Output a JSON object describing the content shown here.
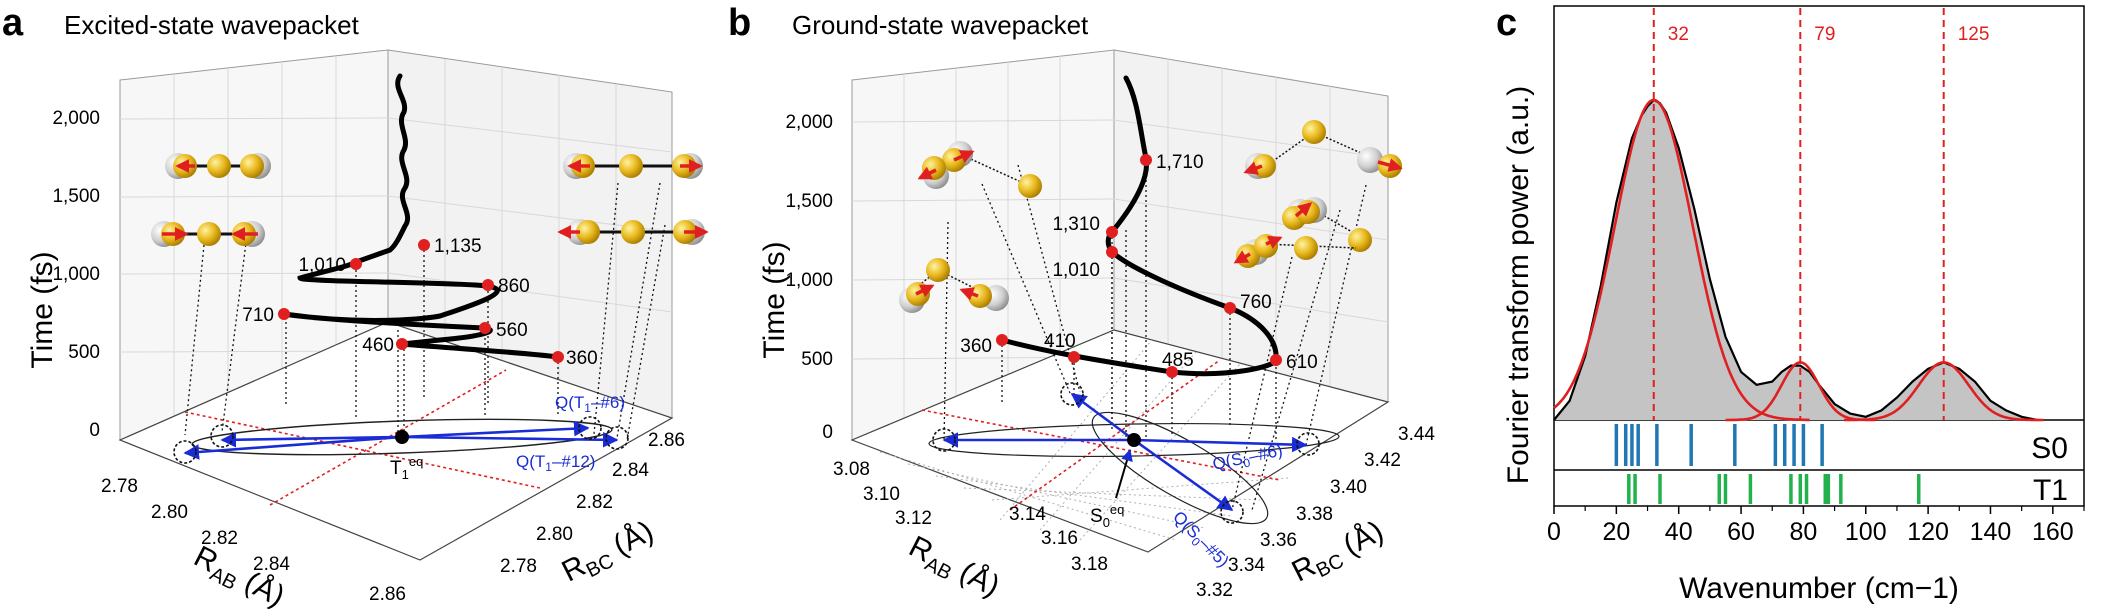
{
  "panels": {
    "a": {
      "letter": "a",
      "title": "Excited-state wavepacket"
    },
    "b": {
      "letter": "b",
      "title": "Ground-state wavepacket"
    },
    "c": {
      "letter": "c"
    }
  },
  "colors": {
    "accent_red": "#e02020",
    "blue": "#1a2cd6",
    "fill_grey": "#c4c4c4",
    "s0_blue": "#1f77b4",
    "t1_green": "#22b14c"
  },
  "chart_data": [
    {
      "id": "a",
      "type": "line",
      "title": "Excited-state wavepacket",
      "zlabel": "Time (fs)",
      "xlabel": "R_AB (Å)",
      "ylabel": "R_BC (Å)",
      "zticks": [
        "0",
        "500",
        "1,000",
        "1,500",
        "2,000"
      ],
      "zlim": [
        -200,
        2300
      ],
      "xticks": [
        "2.78",
        "2.80",
        "2.82",
        "2.84",
        "2.86"
      ],
      "yticks": [
        "2.78",
        "2.80",
        "2.82",
        "2.84",
        "2.86"
      ],
      "marked_times_fs": [
        {
          "t": 360,
          "label": "360"
        },
        {
          "t": 460,
          "label": "460"
        },
        {
          "t": 560,
          "label": "560"
        },
        {
          "t": 710,
          "label": "710"
        },
        {
          "t": 860,
          "label": "860"
        },
        {
          "t": 1010,
          "label": "1,010"
        },
        {
          "t": 1135,
          "label": "1,135"
        }
      ],
      "equilibrium_label": "T1eq",
      "vectors": [
        {
          "label": "Q(T1-#6)",
          "sub": "T",
          "sub2": "1",
          "suffix": "–#6)"
        },
        {
          "label": "Q(T1-#12)",
          "sub": "T",
          "sub2": "1",
          "suffix": "–#12)"
        }
      ]
    },
    {
      "id": "b",
      "type": "line",
      "title": "Ground-state wavepacket",
      "zlabel": "Time (fs)",
      "xlabel": "R_AB (Å)",
      "ylabel": "R_BC (Å)",
      "zticks": [
        "0",
        "500",
        "1,000",
        "1,500",
        "2,000"
      ],
      "zlim": [
        -200,
        2300
      ],
      "xticks": [
        "3.08",
        "3.10",
        "3.12",
        "3.14",
        "3.16",
        "3.18"
      ],
      "yticks": [
        "3.32",
        "3.34",
        "3.36",
        "3.38",
        "3.40",
        "3.42",
        "3.44"
      ],
      "marked_times_fs": [
        {
          "t": 360,
          "label": "360"
        },
        {
          "t": 410,
          "label": "410"
        },
        {
          "t": 485,
          "label": "485"
        },
        {
          "t": 610,
          "label": "610"
        },
        {
          "t": 760,
          "label": "760"
        },
        {
          "t": 1010,
          "label": "1,010"
        },
        {
          "t": 1310,
          "label": "1,310"
        },
        {
          "t": 1710,
          "label": "1,710"
        }
      ],
      "equilibrium_label": "S0eq",
      "vectors": [
        {
          "label": "Q(S0-#6)"
        },
        {
          "label": "Q(S0-#5)"
        }
      ]
    },
    {
      "id": "c",
      "type": "area",
      "xlabel": "Wavenumber (cm−1)",
      "ylabel": "Fourier transform power (a.u.)",
      "xlim": [
        0,
        170
      ],
      "xticks": [
        0,
        20,
        40,
        60,
        80,
        100,
        120,
        140,
        160
      ],
      "series": [
        {
          "name": "Fourier transform power",
          "style": "black line with grey fill",
          "x": [
            0,
            5,
            10,
            15,
            20,
            25,
            28,
            30,
            32,
            34,
            36,
            40,
            45,
            50,
            55,
            60,
            65,
            70,
            73,
            76,
            79,
            82,
            85,
            90,
            95,
            100,
            105,
            110,
            115,
            120,
            125,
            130,
            135,
            140,
            145,
            150,
            155
          ],
          "y": [
            0.0,
            0.06,
            0.2,
            0.42,
            0.68,
            0.88,
            0.95,
            0.98,
            1.0,
            0.99,
            0.96,
            0.85,
            0.66,
            0.44,
            0.26,
            0.15,
            0.11,
            0.12,
            0.15,
            0.17,
            0.17,
            0.15,
            0.11,
            0.05,
            0.02,
            0.01,
            0.03,
            0.07,
            0.12,
            0.16,
            0.18,
            0.16,
            0.12,
            0.06,
            0.03,
            0.01,
            0.0
          ]
        },
        {
          "name": "Gaussian fit",
          "style": "red lines",
          "peaks": [
            {
              "center": 32,
              "amplitude": 1.0,
              "width": 12.5
            },
            {
              "center": 79,
              "amplitude": 0.18,
              "width": 6
            },
            {
              "center": 125,
              "amplitude": 0.18,
              "width": 8
            }
          ]
        }
      ],
      "peak_labels": [
        {
          "x": 32,
          "label": "32"
        },
        {
          "x": 79,
          "label": "79"
        },
        {
          "x": 125,
          "label": "125"
        }
      ],
      "sticks": [
        {
          "name": "S0",
          "color": "#1f77b4",
          "positions": [
            20,
            23,
            25,
            27,
            33,
            44,
            58,
            71,
            74,
            77,
            80,
            86
          ]
        },
        {
          "name": "T1",
          "color": "#22b14c",
          "positions": [
            24,
            26,
            34,
            53,
            55,
            63,
            76,
            79,
            81,
            87,
            88,
            92,
            117
          ]
        }
      ]
    }
  ]
}
